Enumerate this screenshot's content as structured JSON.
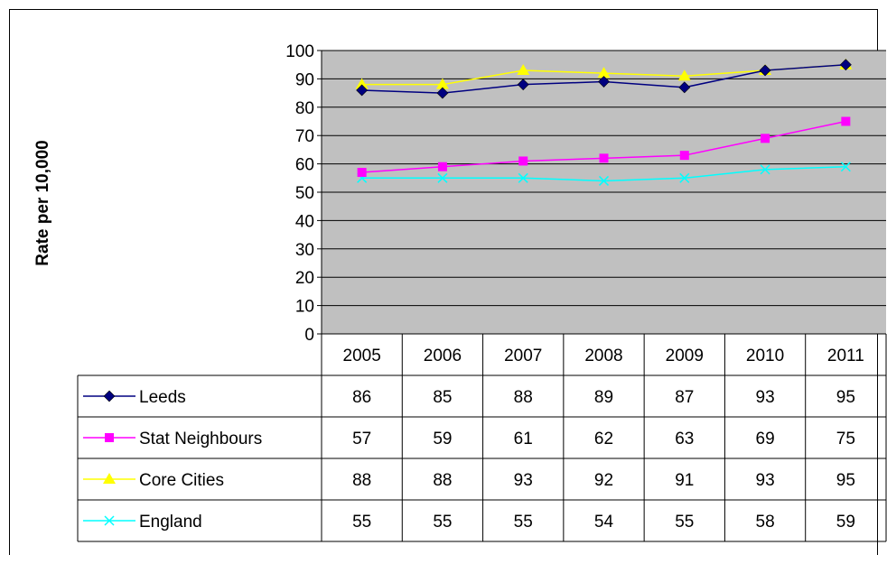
{
  "chart_data": {
    "type": "line",
    "ylabel": "Rate per 10,000",
    "xlabel": "",
    "title": "",
    "categories": [
      "2005",
      "2006",
      "2007",
      "2008",
      "2009",
      "2010",
      "2011"
    ],
    "ylim": [
      0,
      100
    ],
    "yticks": [
      0,
      10,
      20,
      30,
      40,
      50,
      60,
      70,
      80,
      90,
      100
    ],
    "grid": true,
    "legend": "data-table-below",
    "plot_background": "#c0c0c0",
    "series": [
      {
        "name": "Leeds",
        "color": "#000080",
        "marker": "diamond",
        "values": [
          86,
          85,
          88,
          89,
          87,
          93,
          95
        ]
      },
      {
        "name": "Stat Neighbours",
        "color": "#ff00ff",
        "marker": "square",
        "values": [
          57,
          59,
          61,
          62,
          63,
          69,
          75
        ]
      },
      {
        "name": "Core Cities",
        "color": "#ffff00",
        "marker": "triangle",
        "values": [
          88,
          88,
          93,
          92,
          91,
          93,
          95
        ]
      },
      {
        "name": "England",
        "color": "#00ffff",
        "marker": "x",
        "values": [
          55,
          55,
          55,
          54,
          55,
          58,
          59
        ]
      }
    ]
  }
}
